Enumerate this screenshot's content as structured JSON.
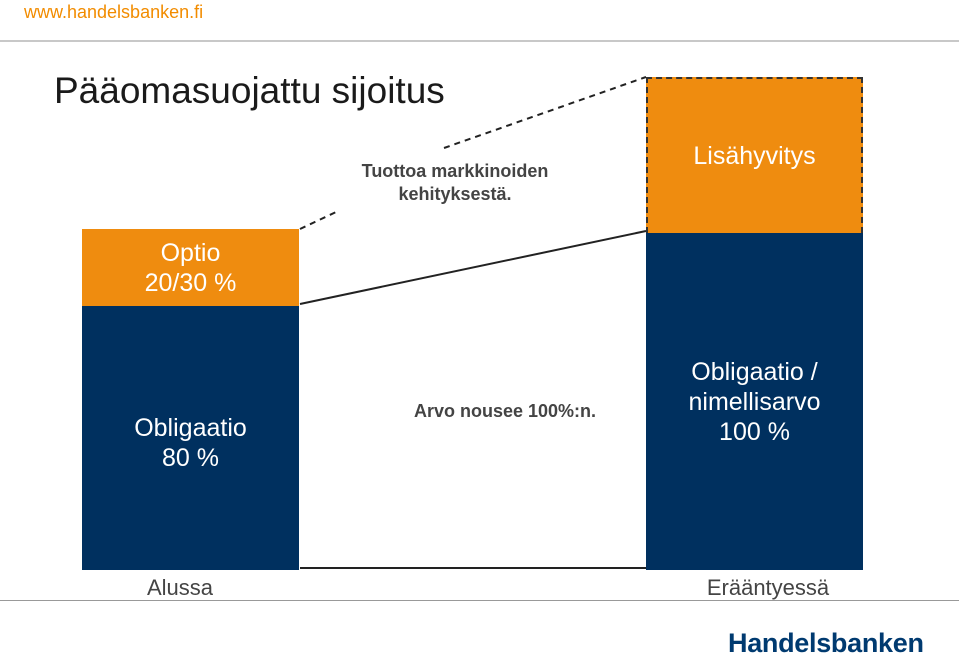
{
  "header": {
    "url": "www.handelsbanken.fi",
    "title": "Pääomasuojattu sijoitus"
  },
  "start_column": {
    "option_box": {
      "line1": "Optio",
      "line2": "20/30 %"
    },
    "bond_box": {
      "line1": "Obligaatio",
      "line2": "80 %"
    },
    "label": "Alussa"
  },
  "end_column": {
    "bonus_box": {
      "label": "Lisähyvitys"
    },
    "bond_box": {
      "line1": "Obligaatio /",
      "line2": "nimellisarvo",
      "line3": "100 %"
    },
    "label": "Erääntyessä"
  },
  "annotations": {
    "return_note": {
      "line1": "Tuottoa markkinoiden",
      "line2": "kehityksestä."
    },
    "value_note": "Arvo nousee 100%:n."
  },
  "footer": {
    "logo": "Handelsbanken"
  },
  "colors": {
    "orange": "#ef8c0f",
    "navy": "#00305f",
    "url_orange": "#f28c00",
    "logo_blue": "#003a70"
  }
}
